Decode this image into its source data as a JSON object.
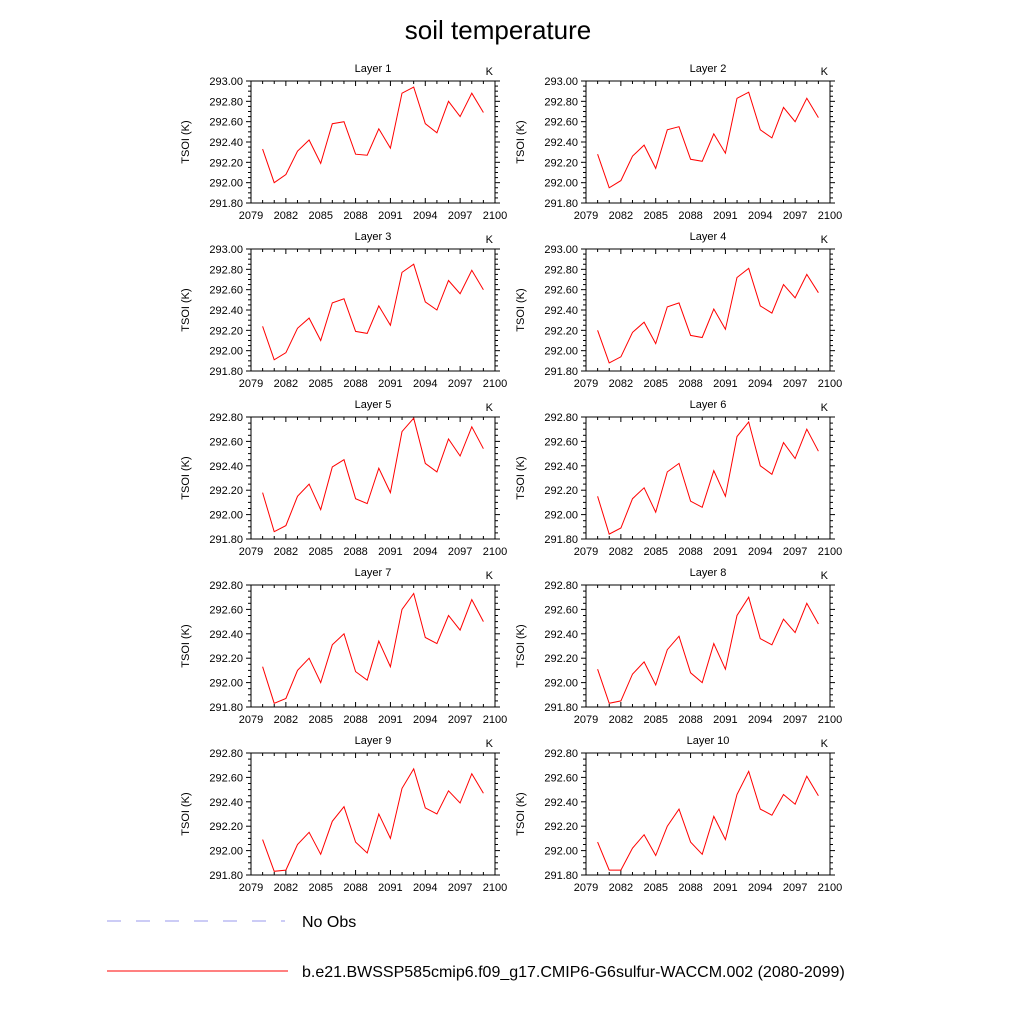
{
  "title": "soil temperature",
  "legend": {
    "items": [
      {
        "label": "No Obs",
        "color": "#9999ee",
        "dash": true
      },
      {
        "label": "b.e21.BWSSP585cmip6.f09_g17.CMIP6-G6sulfur-WACCM.002 (2080-2099)",
        "color": "#ff0000",
        "dash": false
      }
    ]
  },
  "chart_data": [
    {
      "type": "line",
      "title": "Layer 1",
      "unit": "K",
      "ylabel": "TSOI  (K)",
      "xlim": [
        2079,
        2100
      ],
      "ylim": [
        291.8,
        293.0
      ],
      "xticks": [
        "2079",
        "2082",
        "2085",
        "2088",
        "2091",
        "2094",
        "2097",
        "2100"
      ],
      "yticks": [
        "291.80",
        "292.00",
        "292.20",
        "292.40",
        "292.60",
        "292.80",
        "293.00"
      ],
      "x": [
        2080,
        2081,
        2082,
        2083,
        2084,
        2085,
        2086,
        2087,
        2088,
        2089,
        2090,
        2091,
        2092,
        2093,
        2094,
        2095,
        2096,
        2097,
        2098,
        2099
      ],
      "series": [
        {
          "values": [
            292.33,
            292.0,
            292.08,
            292.31,
            292.42,
            292.19,
            292.58,
            292.6,
            292.28,
            292.27,
            292.53,
            292.34,
            292.88,
            292.94,
            292.58,
            292.49,
            292.8,
            292.65,
            292.88,
            292.69
          ]
        }
      ]
    },
    {
      "type": "line",
      "title": "Layer 2",
      "unit": "K",
      "ylabel": "TSOI  (K)",
      "xlim": [
        2079,
        2100
      ],
      "ylim": [
        291.8,
        293.0
      ],
      "xticks": [
        "2079",
        "2082",
        "2085",
        "2088",
        "2091",
        "2094",
        "2097",
        "2100"
      ],
      "yticks": [
        "291.80",
        "292.00",
        "292.20",
        "292.40",
        "292.60",
        "292.80",
        "293.00"
      ],
      "x": [
        2080,
        2081,
        2082,
        2083,
        2084,
        2085,
        2086,
        2087,
        2088,
        2089,
        2090,
        2091,
        2092,
        2093,
        2094,
        2095,
        2096,
        2097,
        2098,
        2099
      ],
      "series": [
        {
          "values": [
            292.28,
            291.95,
            292.02,
            292.26,
            292.37,
            292.14,
            292.52,
            292.55,
            292.23,
            292.21,
            292.48,
            292.29,
            292.83,
            292.89,
            292.52,
            292.44,
            292.74,
            292.6,
            292.83,
            292.64
          ]
        }
      ]
    },
    {
      "type": "line",
      "title": "Layer 3",
      "unit": "K",
      "ylabel": "TSOI  (K)",
      "xlim": [
        2079,
        2100
      ],
      "ylim": [
        291.8,
        293.0
      ],
      "xticks": [
        "2079",
        "2082",
        "2085",
        "2088",
        "2091",
        "2094",
        "2097",
        "2100"
      ],
      "yticks": [
        "291.80",
        "292.00",
        "292.20",
        "292.40",
        "292.60",
        "292.80",
        "293.00"
      ],
      "x": [
        2080,
        2081,
        2082,
        2083,
        2084,
        2085,
        2086,
        2087,
        2088,
        2089,
        2090,
        2091,
        2092,
        2093,
        2094,
        2095,
        2096,
        2097,
        2098,
        2099
      ],
      "series": [
        {
          "values": [
            292.24,
            291.91,
            291.98,
            292.22,
            292.32,
            292.1,
            292.47,
            292.51,
            292.19,
            292.17,
            292.44,
            292.25,
            292.77,
            292.85,
            292.48,
            292.4,
            292.69,
            292.56,
            292.79,
            292.6
          ]
        }
      ]
    },
    {
      "type": "line",
      "title": "Layer 4",
      "unit": "K",
      "ylabel": "TSOI  (K)",
      "xlim": [
        2079,
        2100
      ],
      "ylim": [
        291.8,
        293.0
      ],
      "xticks": [
        "2079",
        "2082",
        "2085",
        "2088",
        "2091",
        "2094",
        "2097",
        "2100"
      ],
      "yticks": [
        "291.80",
        "292.00",
        "292.20",
        "292.40",
        "292.60",
        "292.80",
        "293.00"
      ],
      "x": [
        2080,
        2081,
        2082,
        2083,
        2084,
        2085,
        2086,
        2087,
        2088,
        2089,
        2090,
        2091,
        2092,
        2093,
        2094,
        2095,
        2096,
        2097,
        2098,
        2099
      ],
      "series": [
        {
          "values": [
            292.2,
            291.88,
            291.94,
            292.18,
            292.28,
            292.07,
            292.43,
            292.47,
            292.15,
            292.13,
            292.41,
            292.21,
            292.72,
            292.81,
            292.44,
            292.37,
            292.65,
            292.52,
            292.75,
            292.57
          ]
        }
      ]
    },
    {
      "type": "line",
      "title": "Layer 5",
      "unit": "K",
      "ylabel": "TSOI  (K)",
      "xlim": [
        2079,
        2100
      ],
      "ylim": [
        291.8,
        292.8
      ],
      "xticks": [
        "2079",
        "2082",
        "2085",
        "2088",
        "2091",
        "2094",
        "2097",
        "2100"
      ],
      "yticks": [
        "291.80",
        "292.00",
        "292.20",
        "292.40",
        "292.60",
        "292.80"
      ],
      "x": [
        2080,
        2081,
        2082,
        2083,
        2084,
        2085,
        2086,
        2087,
        2088,
        2089,
        2090,
        2091,
        2092,
        2093,
        2094,
        2095,
        2096,
        2097,
        2098,
        2099
      ],
      "series": [
        {
          "values": [
            292.18,
            291.86,
            291.91,
            292.15,
            292.25,
            292.04,
            292.39,
            292.45,
            292.13,
            292.09,
            292.38,
            292.18,
            292.68,
            292.79,
            292.42,
            292.35,
            292.62,
            292.48,
            292.72,
            292.54
          ]
        }
      ]
    },
    {
      "type": "line",
      "title": "Layer 6",
      "unit": "K",
      "ylabel": "TSOI  (K)",
      "xlim": [
        2079,
        2100
      ],
      "ylim": [
        291.8,
        292.8
      ],
      "xticks": [
        "2079",
        "2082",
        "2085",
        "2088",
        "2091",
        "2094",
        "2097",
        "2100"
      ],
      "yticks": [
        "291.80",
        "292.00",
        "292.20",
        "292.40",
        "292.60",
        "292.80"
      ],
      "x": [
        2080,
        2081,
        2082,
        2083,
        2084,
        2085,
        2086,
        2087,
        2088,
        2089,
        2090,
        2091,
        2092,
        2093,
        2094,
        2095,
        2096,
        2097,
        2098,
        2099
      ],
      "series": [
        {
          "values": [
            292.15,
            291.84,
            291.89,
            292.13,
            292.22,
            292.02,
            292.35,
            292.42,
            292.11,
            292.06,
            292.36,
            292.15,
            292.64,
            292.76,
            292.4,
            292.33,
            292.59,
            292.46,
            292.7,
            292.52
          ]
        }
      ]
    },
    {
      "type": "line",
      "title": "Layer 7",
      "unit": "K",
      "ylabel": "TSOI  (K)",
      "xlim": [
        2079,
        2100
      ],
      "ylim": [
        291.8,
        292.8
      ],
      "xticks": [
        "2079",
        "2082",
        "2085",
        "2088",
        "2091",
        "2094",
        "2097",
        "2100"
      ],
      "yticks": [
        "291.80",
        "292.00",
        "292.20",
        "292.40",
        "292.60",
        "292.80"
      ],
      "x": [
        2080,
        2081,
        2082,
        2083,
        2084,
        2085,
        2086,
        2087,
        2088,
        2089,
        2090,
        2091,
        2092,
        2093,
        2094,
        2095,
        2096,
        2097,
        2098,
        2099
      ],
      "series": [
        {
          "values": [
            292.13,
            291.83,
            291.87,
            292.1,
            292.2,
            292.0,
            292.31,
            292.4,
            292.09,
            292.02,
            292.34,
            292.13,
            292.6,
            292.73,
            292.37,
            292.32,
            292.55,
            292.43,
            292.68,
            292.5
          ]
        }
      ]
    },
    {
      "type": "line",
      "title": "Layer 8",
      "unit": "K",
      "ylabel": "TSOI  (K)",
      "xlim": [
        2079,
        2100
      ],
      "ylim": [
        291.8,
        292.8
      ],
      "xticks": [
        "2079",
        "2082",
        "2085",
        "2088",
        "2091",
        "2094",
        "2097",
        "2100"
      ],
      "yticks": [
        "291.80",
        "292.00",
        "292.20",
        "292.40",
        "292.60",
        "292.80"
      ],
      "x": [
        2080,
        2081,
        2082,
        2083,
        2084,
        2085,
        2086,
        2087,
        2088,
        2089,
        2090,
        2091,
        2092,
        2093,
        2094,
        2095,
        2096,
        2097,
        2098,
        2099
      ],
      "series": [
        {
          "values": [
            292.11,
            291.83,
            291.85,
            292.07,
            292.17,
            291.98,
            292.27,
            292.38,
            292.08,
            292.0,
            292.32,
            292.11,
            292.55,
            292.7,
            292.36,
            292.31,
            292.52,
            292.41,
            292.65,
            292.48
          ]
        }
      ]
    },
    {
      "type": "line",
      "title": "Layer 9",
      "unit": "K",
      "ylabel": "TSOI  (K)",
      "xlim": [
        2079,
        2100
      ],
      "ylim": [
        291.8,
        292.8
      ],
      "xticks": [
        "2079",
        "2082",
        "2085",
        "2088",
        "2091",
        "2094",
        "2097",
        "2100"
      ],
      "yticks": [
        "291.80",
        "292.00",
        "292.20",
        "292.40",
        "292.60",
        "292.80"
      ],
      "x": [
        2080,
        2081,
        2082,
        2083,
        2084,
        2085,
        2086,
        2087,
        2088,
        2089,
        2090,
        2091,
        2092,
        2093,
        2094,
        2095,
        2096,
        2097,
        2098,
        2099
      ],
      "series": [
        {
          "values": [
            292.09,
            291.83,
            291.84,
            292.05,
            292.15,
            291.97,
            292.24,
            292.36,
            292.07,
            291.98,
            292.3,
            292.1,
            292.51,
            292.67,
            292.35,
            292.3,
            292.49,
            292.39,
            292.63,
            292.47
          ]
        }
      ]
    },
    {
      "type": "line",
      "title": "Layer 10",
      "unit": "K",
      "ylabel": "TSOI  (K)",
      "xlim": [
        2079,
        2100
      ],
      "ylim": [
        291.8,
        292.8
      ],
      "xticks": [
        "2079",
        "2082",
        "2085",
        "2088",
        "2091",
        "2094",
        "2097",
        "2100"
      ],
      "yticks": [
        "291.80",
        "292.00",
        "292.20",
        "292.40",
        "292.60",
        "292.80"
      ],
      "x": [
        2080,
        2081,
        2082,
        2083,
        2084,
        2085,
        2086,
        2087,
        2088,
        2089,
        2090,
        2091,
        2092,
        2093,
        2094,
        2095,
        2096,
        2097,
        2098,
        2099
      ],
      "series": [
        {
          "values": [
            292.07,
            291.84,
            291.84,
            292.02,
            292.13,
            291.96,
            292.2,
            292.34,
            292.07,
            291.97,
            292.28,
            292.09,
            292.46,
            292.65,
            292.34,
            292.29,
            292.46,
            292.38,
            292.61,
            292.45
          ]
        }
      ]
    }
  ]
}
